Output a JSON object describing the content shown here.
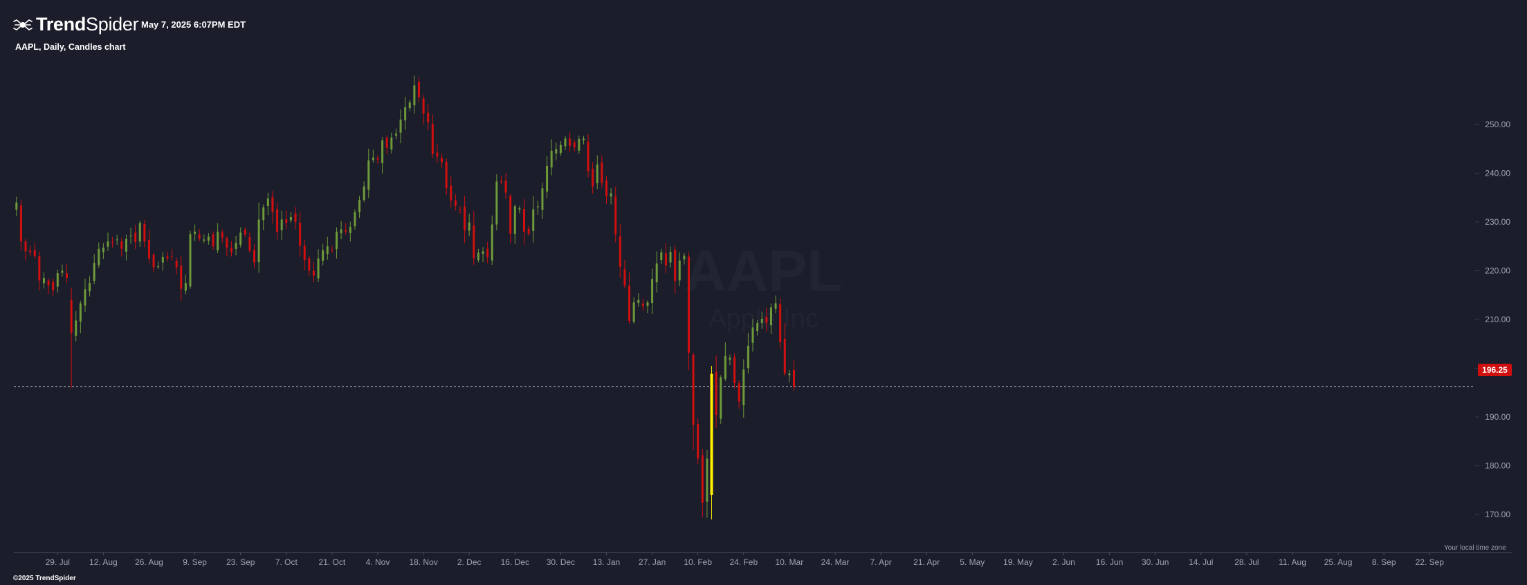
{
  "brand": {
    "name_bold": "Trend",
    "name_light": "Spider"
  },
  "header": {
    "datetime": "May 7, 2025 6:07PM EDT",
    "chart_title": "AAPL, Daily, Candles chart"
  },
  "watermark": {
    "ticker": "AAPL",
    "company": "Apple Inc"
  },
  "footer": {
    "timezone_note": "Your local time zone",
    "copyright": "©2025 TrendSpider"
  },
  "colors": {
    "background": "#1b1d2a",
    "up": "#6e9a3a",
    "down": "#d10f0f",
    "highlight": "#ffee00",
    "axis_text": "#9ea3b2"
  },
  "chart_data": {
    "type": "candlestick",
    "symbol": "AAPL",
    "interval": "Daily",
    "last_price": "196.25",
    "ylim": [
      163.5,
      267
    ],
    "y_ticks": [
      170,
      180,
      190,
      200,
      210,
      220,
      230,
      240,
      250
    ],
    "y_tick_labels": [
      "170.00",
      "180.00",
      "190.00",
      "200.00",
      "210.00",
      "220.00",
      "230.00",
      "240.00",
      "250.00"
    ],
    "x_tick_labels": [
      "29. Jul",
      "12. Aug",
      "26. Aug",
      "9. Sep",
      "23. Sep",
      "7. Oct",
      "21. Oct",
      "4. Nov",
      "18. Nov",
      "2. Dec",
      "16. Dec",
      "30. Dec",
      "13. Jan",
      "27. Jan",
      "10. Feb",
      "24. Feb",
      "10. Mar",
      "24. Mar",
      "7. Apr",
      "21. Apr",
      "5. May",
      "19. May",
      "2. Jun",
      "16. Jun",
      "30. Jun",
      "14. Jul",
      "28. Jul",
      "11. Aug",
      "25. Aug",
      "8. Sep",
      "22. Sep"
    ],
    "closes": [
      234.0,
      226.0,
      224.0,
      223.8,
      223.0,
      218.0,
      218.5,
      217.0,
      216.0,
      219.5,
      220.0,
      218.5,
      207.2,
      209.8,
      213.3,
      216.2,
      217.5,
      221.6,
      224.5,
      224.7,
      226.0,
      225.7,
      226.4,
      224.5,
      226.5,
      227.2,
      225.9,
      229.8,
      226.0,
      222.5,
      220.7,
      220.9,
      222.8,
      222.5,
      222.8,
      220.7,
      216.3,
      217.5,
      227.5,
      228.0,
      226.5,
      226.4,
      227.0,
      225.0,
      228.0,
      226.8,
      224.7,
      223.8,
      225.7,
      227.8,
      227.4,
      224.1,
      221.7,
      230.5,
      233.0,
      234.8,
      232.0,
      228.0,
      230.5,
      229.8,
      231.0,
      230.0,
      225.1,
      222.2,
      220.0,
      219.0,
      222.5,
      224.2,
      225.0,
      224.2,
      228.0,
      228.5,
      228.0,
      229.0,
      232.0,
      234.5,
      237.3,
      242.6,
      243.2,
      242.8,
      246.7,
      245.2,
      247.3,
      248.1,
      251.0,
      253.5,
      254.5,
      258.0,
      255.6,
      252.2,
      250.4,
      243.9,
      243.4,
      242.2,
      236.9,
      234.4,
      233.3,
      232.5,
      228.3,
      229.9,
      222.6,
      223.7,
      224.0,
      222.8,
      229.5,
      238.3,
      238.3,
      236.0,
      227.6,
      233.2,
      232.8,
      228.0,
      227.6,
      232.6,
      233.2,
      236.9,
      241.5,
      244.6,
      244.9,
      245.8,
      247.1,
      245.6,
      245.3,
      247.0,
      247.1,
      240.4,
      237.3,
      241.8,
      238.0,
      235.3,
      235.9,
      227.5,
      220.8,
      216.98,
      209.7,
      213.5,
      214.0,
      212.7,
      213.5,
      218.3,
      221.5,
      223.75,
      221.1,
      223.85,
      217.9,
      222.1,
      223.1,
      203.19,
      188.38,
      181.46,
      172.42,
      181.46,
      198.85,
      190.42,
      198.15,
      202.52,
      202.14,
      196.98,
      193.16,
      199.74,
      204.6,
      208.37,
      209.28,
      210.14,
      209.28,
      212.5,
      213.32,
      205.35,
      198.89,
      198.89,
      196.25
    ]
  }
}
